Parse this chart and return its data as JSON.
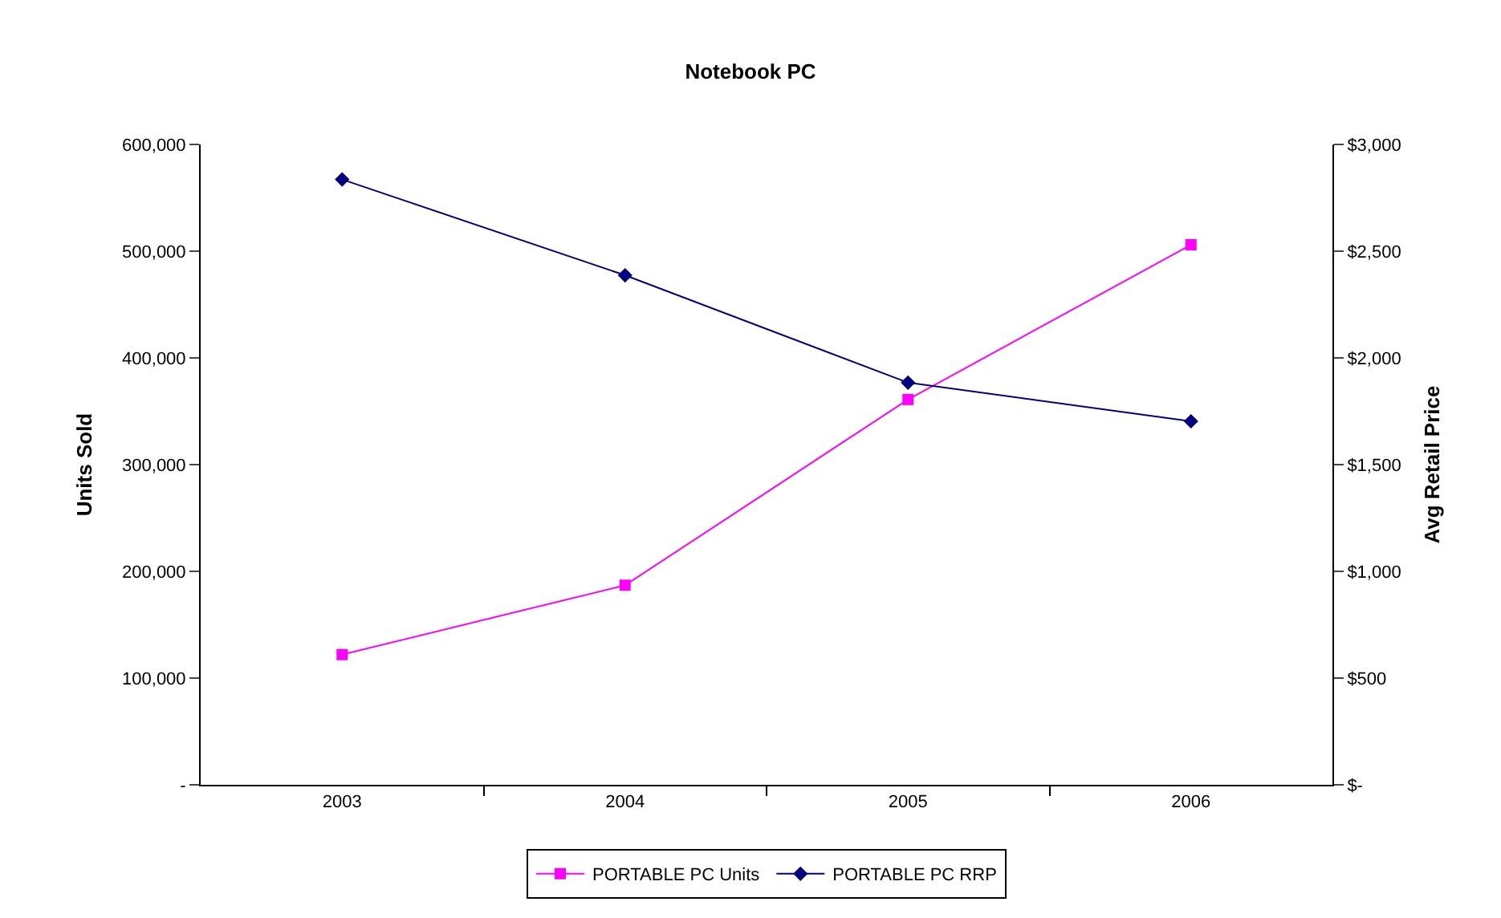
{
  "chart_data": {
    "type": "line",
    "title": "Notebook PC",
    "ylabel": "Units Sold",
    "y2label": "Avg Retail Price",
    "categories": [
      "2003",
      "2004",
      "2005",
      "2006"
    ],
    "series": [
      {
        "name": "PORTABLE PC Units",
        "color": "#ff00ff",
        "marker": "square",
        "values": [
          122000,
          187000,
          361000,
          506000
        ]
      },
      {
        "name": "PORTABLE PC RRP",
        "color": "#000080",
        "marker": "diamond",
        "axis": "y2",
        "values": [
          2836,
          2387,
          1884,
          1703
        ]
      }
    ],
    "ylim": [
      0,
      600000
    ],
    "yticks": [
      {
        "value": 0,
        "label": "-"
      },
      {
        "value": 100000,
        "label": "100,000"
      },
      {
        "value": 200000,
        "label": "200,000"
      },
      {
        "value": 300000,
        "label": "300,000"
      },
      {
        "value": 400000,
        "label": "400,000"
      },
      {
        "value": 500000,
        "label": "500,000"
      },
      {
        "value": 600000,
        "label": "600,000"
      }
    ],
    "y2lim": [
      0,
      3000
    ],
    "y2ticks": [
      {
        "value": 0,
        "label": "$-"
      },
      {
        "value": 500,
        "label": "$500"
      },
      {
        "value": 1000,
        "label": "$1,000"
      },
      {
        "value": 1500,
        "label": "$1,500"
      },
      {
        "value": 2000,
        "label": "$2,000"
      },
      {
        "value": 2500,
        "label": "$2,500"
      },
      {
        "value": 3000,
        "label": "$3,000"
      }
    ],
    "legend": "bottom",
    "line_style": "solid"
  }
}
